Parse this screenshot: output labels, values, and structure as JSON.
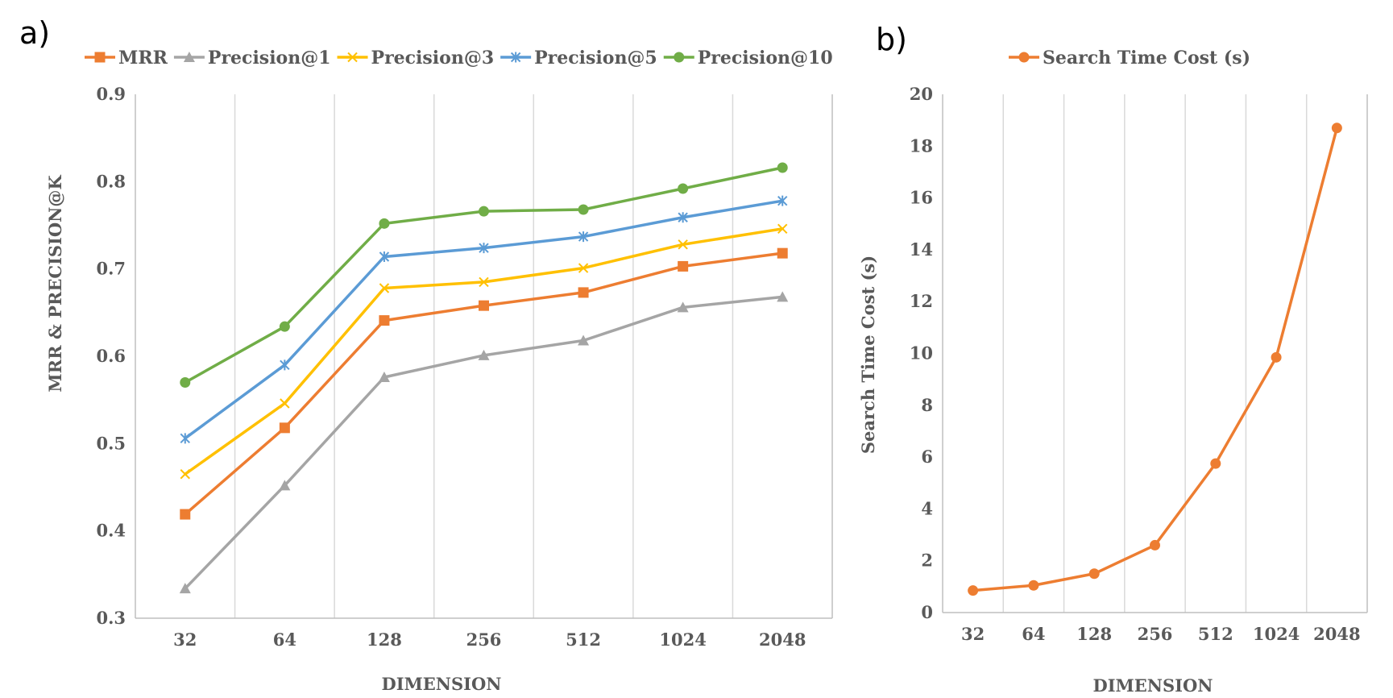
{
  "chart_data": [
    {
      "panel_label": "a)",
      "type": "line",
      "categories": [
        "32",
        "64",
        "128",
        "256",
        "512",
        "1024",
        "2048"
      ],
      "series": [
        {
          "name": "MRR",
          "color": "#ED7D31",
          "marker": "square",
          "values": [
            0.419,
            0.518,
            0.641,
            0.658,
            0.673,
            0.703,
            0.718
          ]
        },
        {
          "name": "Precision@1",
          "color": "#A5A5A5",
          "marker": "triangle",
          "values": [
            0.334,
            0.452,
            0.576,
            0.601,
            0.618,
            0.656,
            0.668
          ]
        },
        {
          "name": "Precision@3",
          "color": "#FFC000",
          "marker": "x",
          "values": [
            0.465,
            0.546,
            0.678,
            0.685,
            0.701,
            0.728,
            0.746
          ]
        },
        {
          "name": "Precision@5",
          "color": "#5B9BD5",
          "marker": "asterisk",
          "values": [
            0.506,
            0.59,
            0.714,
            0.724,
            0.737,
            0.759,
            0.778
          ]
        },
        {
          "name": "Precision@10",
          "color": "#70AD47",
          "marker": "circle",
          "values": [
            0.57,
            0.634,
            0.752,
            0.766,
            0.768,
            0.792,
            0.816
          ]
        }
      ],
      "xlabel": "DIMENSION",
      "ylabel": "MRR & PRECISION@K",
      "ylim": [
        0.3,
        0.9
      ],
      "yticks": [
        "0.3",
        "0.4",
        "0.5",
        "0.6",
        "0.7",
        "0.8",
        "0.9"
      ],
      "legend": "top",
      "grid": "vertical"
    },
    {
      "panel_label": "b)",
      "type": "line",
      "categories": [
        "32",
        "64",
        "128",
        "256",
        "512",
        "1024",
        "2048"
      ],
      "series": [
        {
          "name": "Search Time Cost (s)",
          "color": "#ED7D31",
          "marker": "circle",
          "values": [
            0.85,
            1.05,
            1.5,
            2.6,
            5.75,
            9.85,
            18.7
          ]
        }
      ],
      "xlabel": "DIMENSION",
      "ylabel": "Search Time Cost (s)",
      "ylim": [
        0,
        20
      ],
      "yticks": [
        "0",
        "2",
        "4",
        "6",
        "8",
        "10",
        "12",
        "14",
        "16",
        "18",
        "20"
      ],
      "legend": "top",
      "grid": "vertical"
    }
  ]
}
